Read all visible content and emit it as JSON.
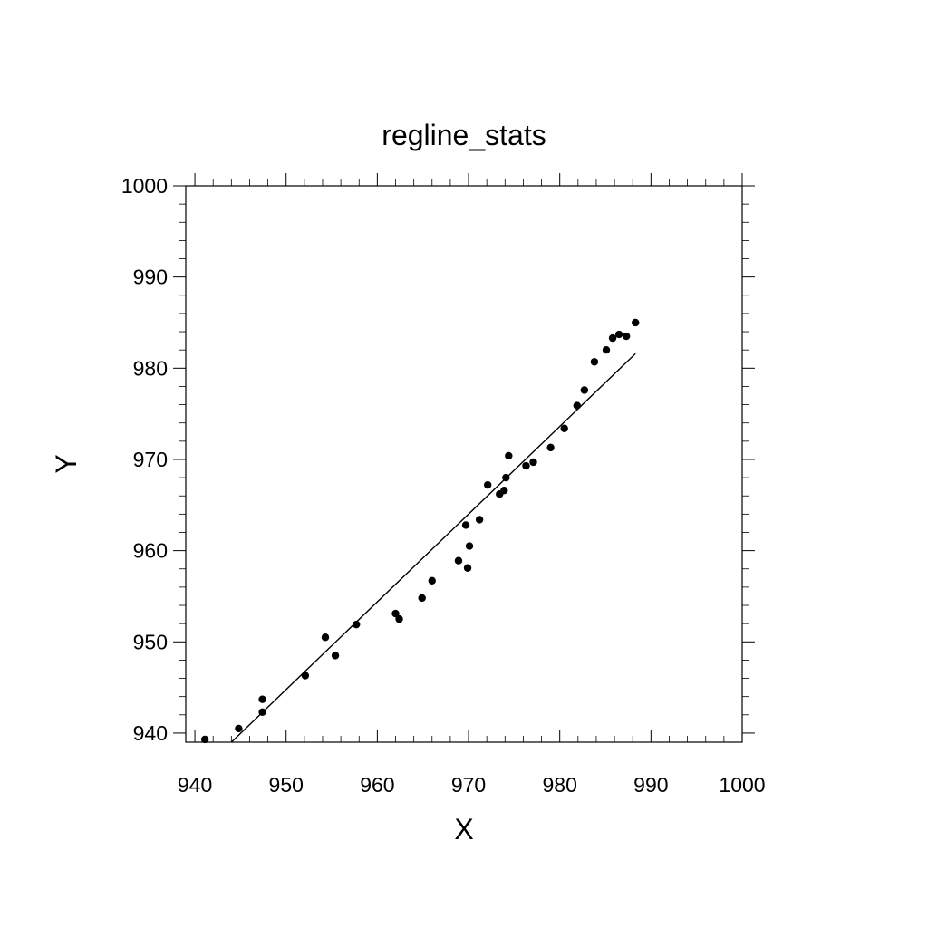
{
  "chart_data": {
    "type": "scatter",
    "title": "regline_stats",
    "xlabel": "X",
    "ylabel": "Y",
    "xlim": [
      939,
      1000
    ],
    "ylim": [
      939,
      1000
    ],
    "xticks": [
      940,
      950,
      960,
      970,
      980,
      990,
      1000
    ],
    "yticks": [
      940,
      950,
      960,
      970,
      980,
      990,
      1000
    ],
    "xtick_labels": [
      "940",
      "950",
      "960",
      "970",
      "980",
      "990",
      "1000"
    ],
    "ytick_labels": [
      "940",
      "950",
      "960",
      "970",
      "980",
      "990",
      "1000"
    ],
    "minor_tick_step": 2,
    "grid": false,
    "legend": "none",
    "colors": {
      "points": "#000000",
      "line": "#000000",
      "frame": "#000000"
    },
    "points": [
      {
        "x": 941.1,
        "y": 939.3
      },
      {
        "x": 944.8,
        "y": 940.5
      },
      {
        "x": 947.4,
        "y": 942.3
      },
      {
        "x": 947.4,
        "y": 943.7
      },
      {
        "x": 952.1,
        "y": 946.3
      },
      {
        "x": 954.3,
        "y": 950.5
      },
      {
        "x": 955.4,
        "y": 948.5
      },
      {
        "x": 957.7,
        "y": 951.9
      },
      {
        "x": 962.0,
        "y": 953.1
      },
      {
        "x": 962.4,
        "y": 952.5
      },
      {
        "x": 964.9,
        "y": 954.8
      },
      {
        "x": 966.0,
        "y": 956.7
      },
      {
        "x": 968.9,
        "y": 958.9
      },
      {
        "x": 969.7,
        "y": 962.8
      },
      {
        "x": 969.9,
        "y": 958.1
      },
      {
        "x": 970.1,
        "y": 960.5
      },
      {
        "x": 971.2,
        "y": 963.4
      },
      {
        "x": 972.1,
        "y": 967.2
      },
      {
        "x": 973.4,
        "y": 966.2
      },
      {
        "x": 973.9,
        "y": 966.6
      },
      {
        "x": 974.1,
        "y": 968.0
      },
      {
        "x": 974.4,
        "y": 970.4
      },
      {
        "x": 976.3,
        "y": 969.3
      },
      {
        "x": 977.1,
        "y": 969.7
      },
      {
        "x": 979.0,
        "y": 971.3
      },
      {
        "x": 980.5,
        "y": 973.4
      },
      {
        "x": 981.9,
        "y": 975.9
      },
      {
        "x": 982.7,
        "y": 977.6
      },
      {
        "x": 983.8,
        "y": 980.7
      },
      {
        "x": 985.1,
        "y": 982.0
      },
      {
        "x": 985.8,
        "y": 983.3
      },
      {
        "x": 986.5,
        "y": 983.7
      },
      {
        "x": 987.3,
        "y": 983.5
      },
      {
        "x": 988.3,
        "y": 985.0
      }
    ],
    "regression_line": {
      "x": [
        944.0,
        988.3
      ],
      "y": [
        939.0,
        981.6
      ]
    }
  }
}
